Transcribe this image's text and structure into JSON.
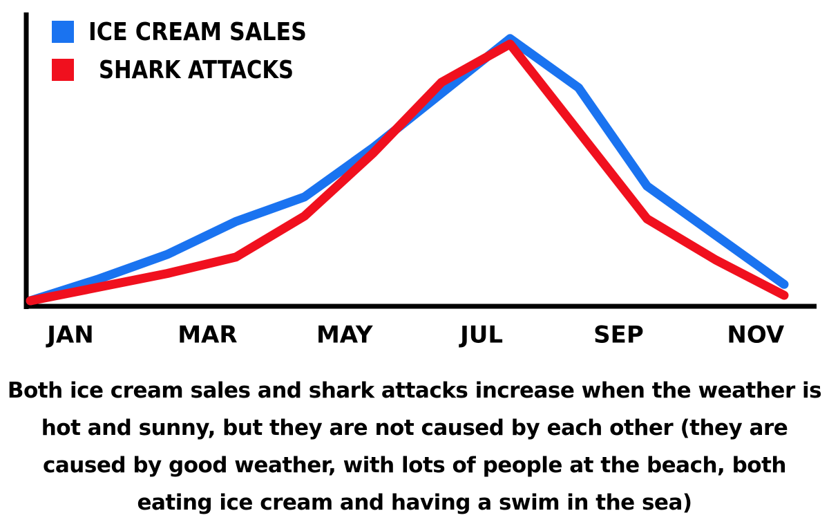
{
  "chart_data": {
    "type": "line",
    "categories": [
      "JAN",
      null,
      "MAR",
      null,
      "MAY",
      null,
      "JUL",
      null,
      "SEP",
      null,
      "NOV",
      null
    ],
    "series": [
      {
        "name": "ICE CREAM SALES",
        "color": "#1a73f0",
        "values": [
          0,
          8,
          17,
          29,
          38,
          56,
          76,
          96,
          78,
          42,
          24,
          6
        ]
      },
      {
        "name": "SHARK ATTACKS",
        "color": "#f0101e",
        "values": [
          0,
          5,
          10,
          16,
          31,
          54,
          80,
          94,
          62,
          30,
          15,
          2
        ]
      }
    ],
    "ylim": [
      0,
      100
    ],
    "legend": "top-left",
    "caption": "Both ice cream sales and shark attacks increase when the weather is hot and sunny, but they are not caused by each other (they are caused by good weather, with lots of people at the beach, both eating ice cream and having a swim in the sea)"
  }
}
